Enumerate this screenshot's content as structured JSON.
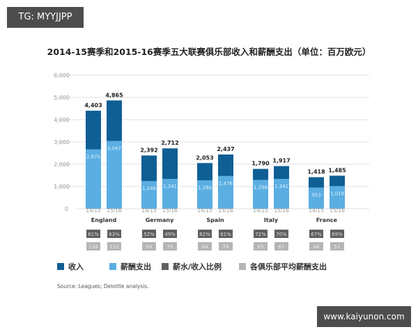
{
  "tag": "TG: MYYJJPP",
  "watermark": "www.kaiyunon.com",
  "chart_data": {
    "type": "bar",
    "title": "2014-15赛季和2015-16赛季五大联赛俱乐部收入和薪酬支出（单位：百万欧元）",
    "ylim": [
      0,
      6000
    ],
    "yticks": [
      "0",
      "1,000",
      "2,000",
      "3,000",
      "4,000",
      "5,000",
      "6,000"
    ],
    "grid": true,
    "groups": [
      "England",
      "Germany",
      "Spain",
      "Italy",
      "France"
    ],
    "seasons": [
      "14/15",
      "15/16"
    ],
    "series": [
      {
        "name": "收入",
        "color": "#0f5f94",
        "values": [
          [
            4403,
            4865
          ],
          [
            2392,
            2712
          ],
          [
            2053,
            2437
          ],
          [
            1790,
            1917
          ],
          [
            1418,
            1485
          ]
        ],
        "labels": [
          [
            "4,403",
            "4,865"
          ],
          [
            "2,392",
            "2,712"
          ],
          [
            "2,053",
            "2,437"
          ],
          [
            "1,790",
            "1,917"
          ],
          [
            "1,418",
            "1,485"
          ]
        ]
      },
      {
        "name": "薪酬支出",
        "color": "#5aaee2",
        "values": [
          [
            2670,
            3047
          ],
          [
            1246,
            1341
          ],
          [
            1280,
            1476
          ],
          [
            1298,
            1341
          ],
          [
            953,
            1019
          ]
        ],
        "labels": [
          [
            "2,670",
            "3,047"
          ],
          [
            "1,246",
            "1,341"
          ],
          [
            "1,280",
            "1,476"
          ],
          [
            "1,298",
            "1,341"
          ],
          [
            "953",
            "1,019"
          ]
        ]
      },
      {
        "name": "薪水/收入比例",
        "color": "#606060",
        "values": [
          [
            "61%",
            "63%"
          ],
          [
            "52%",
            "49%"
          ],
          [
            "62%",
            "61%"
          ],
          [
            "72%",
            "70%"
          ],
          [
            "67%",
            "69%"
          ]
        ]
      },
      {
        "name": "各俱乐部平均薪酬支出",
        "color": "#b5b5b5",
        "values": [
          [
            "134",
            "152"
          ],
          [
            "69",
            "75"
          ],
          [
            "64",
            "74"
          ],
          [
            "65",
            "67"
          ],
          [
            "48",
            "51"
          ]
        ]
      }
    ],
    "legend_position": "bottom",
    "source": "Source: Leagues; Deloitte analysis."
  }
}
